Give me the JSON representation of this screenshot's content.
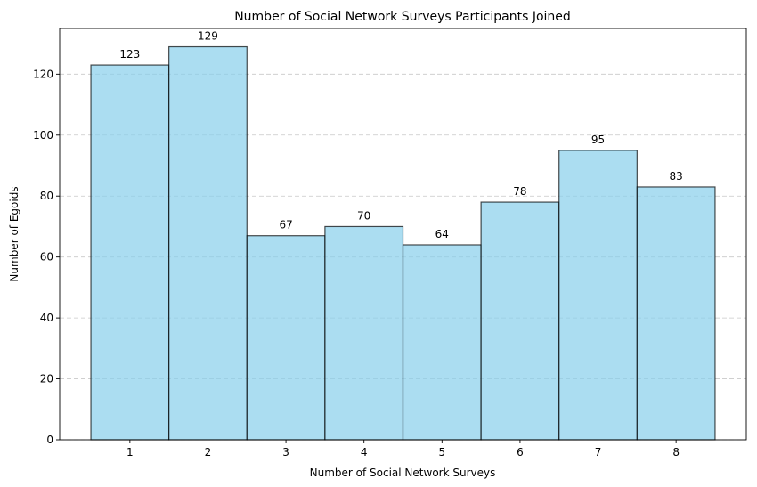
{
  "chart_data": {
    "type": "bar",
    "title": "Number of Social Network Surveys Participants Joined",
    "xlabel": "Number of Social Network Surveys",
    "ylabel": "Number of Egoids",
    "categories": [
      "1",
      "2",
      "3",
      "4",
      "5",
      "6",
      "7",
      "8"
    ],
    "values": [
      123,
      129,
      67,
      70,
      64,
      78,
      95,
      83
    ],
    "ylim": [
      0,
      135
    ],
    "yticks": [
      0,
      20,
      40,
      60,
      80,
      100,
      120
    ],
    "grid": "y",
    "bar_color": "#87ceeb",
    "edge_color": "#000000"
  }
}
